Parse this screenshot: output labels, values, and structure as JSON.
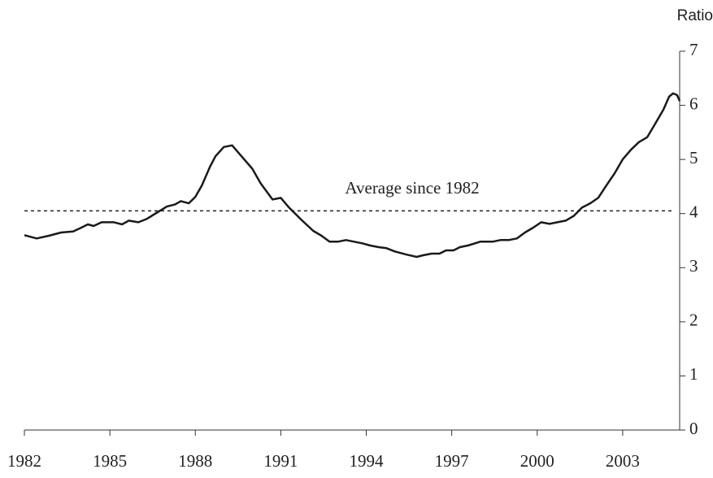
{
  "chart_data": {
    "type": "line",
    "y_axis_label": "Ratio",
    "x": [
      1982.0,
      1982.43,
      1982.86,
      1983.29,
      1983.71,
      1984.0,
      1984.23,
      1984.43,
      1984.71,
      1985.14,
      1985.43,
      1985.66,
      1986.0,
      1986.29,
      1986.63,
      1987.0,
      1987.29,
      1987.49,
      1987.77,
      1988.0,
      1988.23,
      1988.51,
      1988.71,
      1989.0,
      1989.29,
      1989.57,
      1990.0,
      1990.29,
      1990.71,
      1991.0,
      1991.29,
      1991.71,
      1992.14,
      1992.43,
      1992.71,
      1993.0,
      1993.29,
      1993.57,
      1993.86,
      1994.14,
      1994.43,
      1994.71,
      1995.0,
      1995.43,
      1995.77,
      1996.0,
      1996.29,
      1996.57,
      1996.8,
      1997.06,
      1997.29,
      1997.57,
      1998.0,
      1998.43,
      1998.71,
      1999.0,
      1999.29,
      1999.57,
      1999.86,
      2000.14,
      2000.43,
      2000.71,
      2001.0,
      2001.29,
      2001.57,
      2001.86,
      2002.14,
      2002.43,
      2002.71,
      2003.0,
      2003.29,
      2003.57,
      2003.86,
      2004.14,
      2004.43,
      2004.63,
      2004.77,
      2004.91,
      2005.0
    ],
    "values": [
      3.6,
      3.54,
      3.59,
      3.65,
      3.67,
      3.74,
      3.8,
      3.77,
      3.84,
      3.84,
      3.8,
      3.87,
      3.84,
      3.9,
      4.01,
      4.13,
      4.17,
      4.23,
      4.19,
      4.31,
      4.52,
      4.86,
      5.06,
      5.23,
      5.26,
      5.09,
      4.83,
      4.56,
      4.26,
      4.29,
      4.11,
      3.89,
      3.68,
      3.59,
      3.48,
      3.48,
      3.51,
      3.48,
      3.45,
      3.41,
      3.38,
      3.36,
      3.3,
      3.24,
      3.2,
      3.23,
      3.26,
      3.26,
      3.32,
      3.32,
      3.38,
      3.41,
      3.48,
      3.48,
      3.51,
      3.51,
      3.54,
      3.65,
      3.74,
      3.84,
      3.81,
      3.84,
      3.87,
      3.96,
      4.11,
      4.19,
      4.29,
      4.52,
      4.74,
      5.0,
      5.18,
      5.32,
      5.41,
      5.66,
      5.92,
      6.16,
      6.22,
      6.19,
      6.08
    ],
    "color": "#1a1a1a",
    "reference_line": {
      "value": 4.05,
      "label": "Average since 1982"
    },
    "xlim": [
      1982,
      2005
    ],
    "xticks": [
      1982,
      1985,
      1988,
      1991,
      1994,
      1997,
      2000,
      2003
    ],
    "ylim": [
      0,
      7
    ],
    "yticks": [
      0,
      1,
      2,
      3,
      4,
      5,
      6,
      7
    ],
    "y_axis_side": "right",
    "grid": false
  }
}
